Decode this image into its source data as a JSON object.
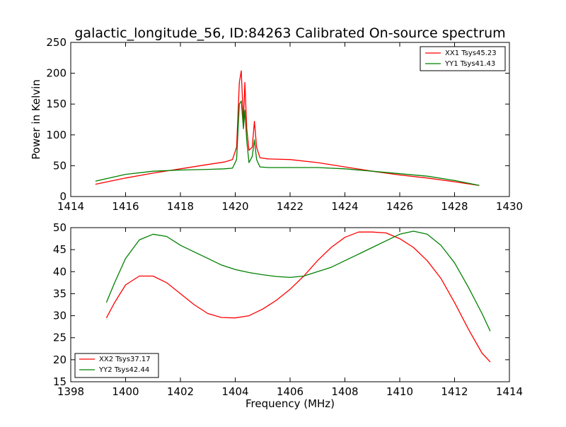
{
  "title": "galactic_longitude_56, ID:84263 Calibrated On-source spectrum",
  "chart_data": [
    {
      "type": "line",
      "ylabel": "Power in Kelvin",
      "xlabel": "",
      "xlim": [
        1414,
        1430
      ],
      "ylim": [
        0,
        250
      ],
      "xticks": [
        "1414",
        "1416",
        "1418",
        "1420",
        "1422",
        "1424",
        "1426",
        "1428",
        "1430"
      ],
      "yticks": [
        "0",
        "50",
        "100",
        "150",
        "200",
        "250"
      ],
      "legend_position": "top-right",
      "series": [
        {
          "name": "XX1 Tsys45.23",
          "color": "#ff0000",
          "x": [
            1414.9,
            1416.0,
            1417.0,
            1418.0,
            1419.0,
            1419.6,
            1419.9,
            1420.05,
            1420.15,
            1420.22,
            1420.3,
            1420.35,
            1420.42,
            1420.5,
            1420.62,
            1420.7,
            1420.78,
            1420.9,
            1421.2,
            1422.0,
            1423.0,
            1424.0,
            1425.0,
            1426.0,
            1427.0,
            1428.0,
            1428.9
          ],
          "y": [
            20,
            30,
            38,
            45,
            52,
            56,
            60,
            80,
            185,
            204,
            120,
            185,
            110,
            75,
            80,
            122,
            80,
            63,
            61,
            60,
            55,
            48,
            41,
            35,
            30,
            24,
            18
          ]
        },
        {
          "name": "YY1 Tsys41.43",
          "color": "#008000",
          "x": [
            1414.9,
            1416.0,
            1417.0,
            1418.0,
            1419.0,
            1419.6,
            1419.9,
            1420.05,
            1420.15,
            1420.22,
            1420.3,
            1420.35,
            1420.42,
            1420.5,
            1420.62,
            1420.7,
            1420.78,
            1420.9,
            1421.2,
            1422.0,
            1423.0,
            1424.0,
            1425.0,
            1426.0,
            1427.0,
            1428.0,
            1428.9
          ],
          "y": [
            25,
            36,
            41,
            43,
            44,
            45,
            46,
            60,
            150,
            155,
            110,
            140,
            90,
            55,
            65,
            92,
            60,
            48,
            47,
            47,
            47,
            45,
            41,
            37,
            33,
            26,
            18
          ]
        }
      ]
    },
    {
      "type": "line",
      "xlabel": "Frequency (MHz)",
      "ylabel": "",
      "xlim": [
        1398,
        1414
      ],
      "ylim": [
        15,
        50
      ],
      "xticks": [
        "1398",
        "1400",
        "1402",
        "1404",
        "1406",
        "1408",
        "1410",
        "1412",
        "1414"
      ],
      "yticks": [
        "15",
        "20",
        "25",
        "30",
        "35",
        "40",
        "45",
        "50"
      ],
      "legend_position": "bottom-left",
      "series": [
        {
          "name": "XX2 Tsys37.17",
          "color": "#ff0000",
          "x": [
            1399.3,
            1399.6,
            1400.0,
            1400.5,
            1401.0,
            1401.5,
            1402.0,
            1402.5,
            1403.0,
            1403.5,
            1404.0,
            1404.5,
            1405.0,
            1405.5,
            1406.0,
            1406.5,
            1407.0,
            1407.5,
            1408.0,
            1408.5,
            1409.0,
            1409.5,
            1410.0,
            1410.5,
            1411.0,
            1411.5,
            1412.0,
            1412.5,
            1413.0,
            1413.3
          ],
          "y": [
            29.5,
            33,
            37,
            39,
            39,
            37.5,
            35,
            32.5,
            30.5,
            29.6,
            29.5,
            30,
            31.5,
            33.5,
            36,
            39,
            42.5,
            45.5,
            47.8,
            49,
            49,
            48.8,
            47.5,
            45.5,
            42.5,
            38.5,
            33,
            27,
            21.5,
            19.5
          ]
        },
        {
          "name": "YY2 Tsys42.44",
          "color": "#008000",
          "x": [
            1399.3,
            1399.6,
            1400.0,
            1400.5,
            1401.0,
            1401.5,
            1402.0,
            1402.5,
            1403.0,
            1403.5,
            1404.0,
            1404.5,
            1405.0,
            1405.5,
            1406.0,
            1406.5,
            1407.0,
            1407.5,
            1408.0,
            1408.5,
            1409.0,
            1409.5,
            1410.0,
            1410.5,
            1411.0,
            1411.5,
            1412.0,
            1412.5,
            1413.0,
            1413.3
          ],
          "y": [
            33,
            37.5,
            43,
            47.2,
            48.5,
            48,
            46,
            44.5,
            43,
            41.5,
            40.5,
            39.8,
            39.3,
            38.9,
            38.7,
            39,
            40,
            41,
            42.5,
            44,
            45.5,
            47,
            48.5,
            49.2,
            48.5,
            46,
            42,
            36.5,
            30.5,
            26.5
          ]
        }
      ]
    }
  ]
}
